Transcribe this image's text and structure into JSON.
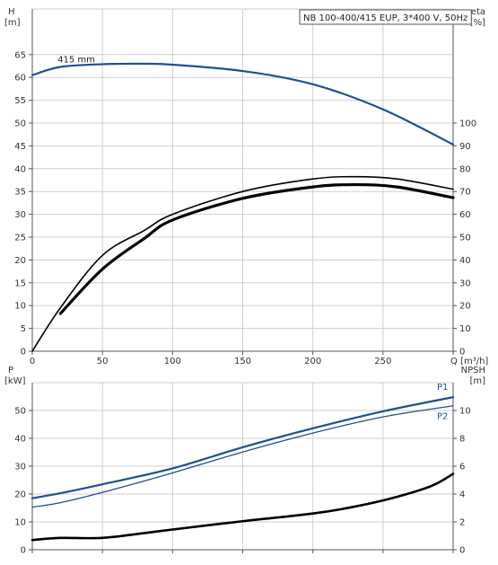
{
  "chart_data": [
    {
      "type": "line",
      "title": "NB 100-400/415 EUP, 3*400 V, 50Hz",
      "xlabel": "Q [m³/h]",
      "xlim": [
        0,
        300
      ],
      "x_ticks": [
        0,
        50,
        100,
        150,
        200,
        250
      ],
      "ylabel_left": [
        "H",
        "[m]"
      ],
      "ylim_left": [
        0,
        75
      ],
      "y_ticks_left": [
        0,
        5,
        10,
        15,
        20,
        25,
        30,
        35,
        40,
        45,
        50,
        55,
        60,
        65
      ],
      "ylabel_right": [
        "eta",
        "[%]"
      ],
      "ylim_right": [
        0,
        150
      ],
      "y_ticks_right": [
        0,
        10,
        20,
        30,
        40,
        50,
        60,
        70,
        80,
        90,
        100
      ],
      "grid": true,
      "annotations": [
        {
          "text": "415 mm",
          "x": 18,
          "y": 62.3,
          "axis": "left"
        }
      ],
      "series": [
        {
          "axis": "left",
          "color": "#1f4f8f",
          "stroke_width": 2.2,
          "x": [
            0,
            20,
            50,
            80,
            100,
            150,
            200,
            250,
            300
          ],
          "y": [
            60.5,
            62.3,
            62.9,
            63.0,
            62.8,
            61.4,
            58.5,
            53.0,
            45.3
          ]
        },
        {
          "axis": "right",
          "color": "#000000",
          "stroke_width": 1.6,
          "x": [
            0,
            20,
            50,
            80,
            100,
            150,
            200,
            230,
            260,
            300
          ],
          "y": [
            0,
            19,
            42,
            53,
            60,
            70,
            75.5,
            76.5,
            75.5,
            71
          ]
        },
        {
          "axis": "right",
          "color": "#000000",
          "stroke_width": 3.2,
          "x": [
            20,
            50,
            80,
            100,
            150,
            200,
            230,
            260,
            300
          ],
          "y": [
            16.5,
            36,
            49.5,
            57.5,
            67,
            72,
            73,
            72,
            67.3
          ]
        }
      ]
    },
    {
      "type": "line",
      "xlim": [
        0,
        300
      ],
      "ylabel_left": [
        "P",
        "[kW]"
      ],
      "ylim_left": [
        0,
        60
      ],
      "y_ticks_left": [
        0,
        10,
        20,
        30,
        40,
        50
      ],
      "ylabel_right": [
        "NPSH",
        "[m]"
      ],
      "ylim_right": [
        0,
        12
      ],
      "y_ticks_right": [
        0,
        2,
        4,
        6,
        8,
        10
      ],
      "grid": true,
      "series": [
        {
          "name": "P1",
          "axis": "left",
          "color": "#1f4f8f",
          "stroke_width": 2.2,
          "x": [
            0,
            20,
            50,
            100,
            150,
            200,
            250,
            300
          ],
          "y": [
            18.5,
            20.3,
            23.5,
            29.2,
            36.8,
            43.6,
            49.7,
            54.8
          ]
        },
        {
          "name": "P2",
          "axis": "left",
          "color": "#1f4f8f",
          "stroke_width": 1.3,
          "x": [
            0,
            20,
            50,
            100,
            150,
            200,
            250,
            300
          ],
          "y": [
            15.3,
            16.9,
            20.6,
            27.6,
            35.1,
            41.9,
            47.7,
            51.7
          ]
        },
        {
          "axis": "right",
          "color": "#000000",
          "stroke_width": 2.6,
          "x": [
            0,
            20,
            50,
            80,
            100,
            150,
            200,
            230,
            260,
            285,
            300
          ],
          "y": [
            0.7,
            0.85,
            0.85,
            1.2,
            1.45,
            2.05,
            2.6,
            3.1,
            3.8,
            4.6,
            5.45
          ]
        }
      ]
    }
  ]
}
